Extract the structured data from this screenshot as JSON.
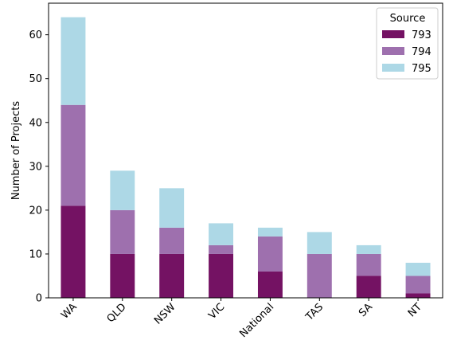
{
  "chart_data": {
    "type": "bar",
    "stacked": true,
    "categories": [
      "WA",
      "QLD",
      "NSW",
      "VIC",
      "National",
      "TAS",
      "SA",
      "NT"
    ],
    "series": [
      {
        "name": "793",
        "values": [
          21,
          10,
          10,
          10,
          6,
          0,
          5,
          1
        ],
        "color": "#741263"
      },
      {
        "name": "794",
        "values": [
          23,
          10,
          6,
          2,
          8,
          10,
          5,
          4
        ],
        "color": "#9e70ae"
      },
      {
        "name": "795",
        "values": [
          20,
          9,
          9,
          5,
          2,
          5,
          2,
          3
        ],
        "color": "#add8e6"
      }
    ],
    "xlabel": "",
    "ylabel": "Number of Projects",
    "ylim": [
      0,
      67.2
    ],
    "yticks": [
      0,
      10,
      20,
      30,
      40,
      50,
      60
    ],
    "xtick_rotation_deg": 45,
    "legend": {
      "title": "Source",
      "placement": "top-right"
    },
    "grid": false
  }
}
